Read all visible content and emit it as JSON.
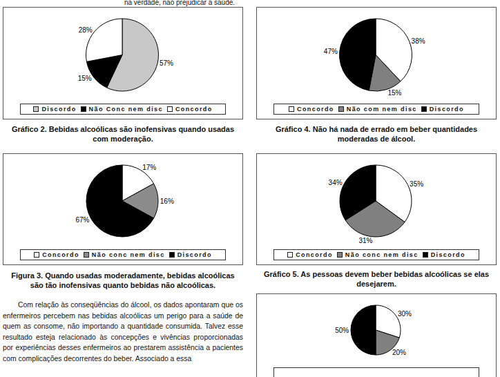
{
  "top_text": "na verdade, não prejudicar a saúde.",
  "chart_data": [
    {
      "type": "pie",
      "title": "Gráfico 2. Bebidas alcoólicas são inofensivas quando usadas com moderação.",
      "categories": [
        "Discordo",
        "Não Conc nem disc",
        "Concordo"
      ],
      "values": [
        57,
        15,
        28
      ],
      "value_labels": [
        "57%",
        "15%",
        "28%"
      ],
      "colors": [
        "#c8c8c8",
        "#000000",
        "#ffffff"
      ],
      "legend": "bottom",
      "data_labels": true
    },
    {
      "type": "pie",
      "title": "Figura 3.  Quando usadas moderadamente, bebidas alcoólicas são tão inofensivas quanto bebidas não alcoólicas.",
      "categories": [
        "Concordo",
        "Não conc nem disc",
        "Discordo"
      ],
      "values": [
        17,
        16,
        67
      ],
      "value_labels": [
        "17%",
        "16%",
        "67%"
      ],
      "colors": [
        "#ffffff",
        "#8c8c8c",
        "#000000"
      ],
      "legend": "bottom",
      "data_labels": true
    },
    {
      "type": "pie",
      "title": "Gráfico 4. Não há nada de errado em beber quantidades moderadas de álcool.",
      "categories": [
        "Concordo",
        "Não com nem disc",
        "Discordo"
      ],
      "values": [
        38,
        15,
        47
      ],
      "value_labels": [
        "38%",
        "15%",
        "47%"
      ],
      "colors": [
        "#ffffff",
        "#808080",
        "#000000"
      ],
      "legend": "bottom",
      "data_labels": true
    },
    {
      "type": "pie",
      "title": "Gráfico 5. As pessoas devem beber bebidas alcoólicas se elas desejarem.",
      "categories": [
        "Concordo",
        "Não conc nem disc",
        "Discordo"
      ],
      "values": [
        35,
        31,
        34
      ],
      "value_labels": [
        "35%",
        "31%",
        "34%"
      ],
      "colors": [
        "#ffffff",
        "#808080",
        "#000000"
      ],
      "legend": "bottom",
      "data_labels": true
    },
    {
      "type": "pie",
      "categories": [
        null,
        null,
        null
      ],
      "values": [
        30,
        20,
        50
      ],
      "value_labels": [
        "30%",
        "20%",
        "50%"
      ],
      "colors": [
        "#ffffff",
        "#808080",
        "#000000"
      ],
      "legend": "bottom",
      "data_labels": true
    }
  ],
  "body_text": [
    "Com relação às conseqüências do álcool, os dados apontaram que os enfermeiros percebem nas bebidas alcoólicas um perigo para a saúde de quem as consome, não importando a quantidade consumida. Talvez esse resultado esteja relacionado às concepções e vivências proporcionadas por experiências desses enfermeiros ao prestarem assistência a pacientes com complicações decorrentes do beber. Associado a essa"
  ]
}
